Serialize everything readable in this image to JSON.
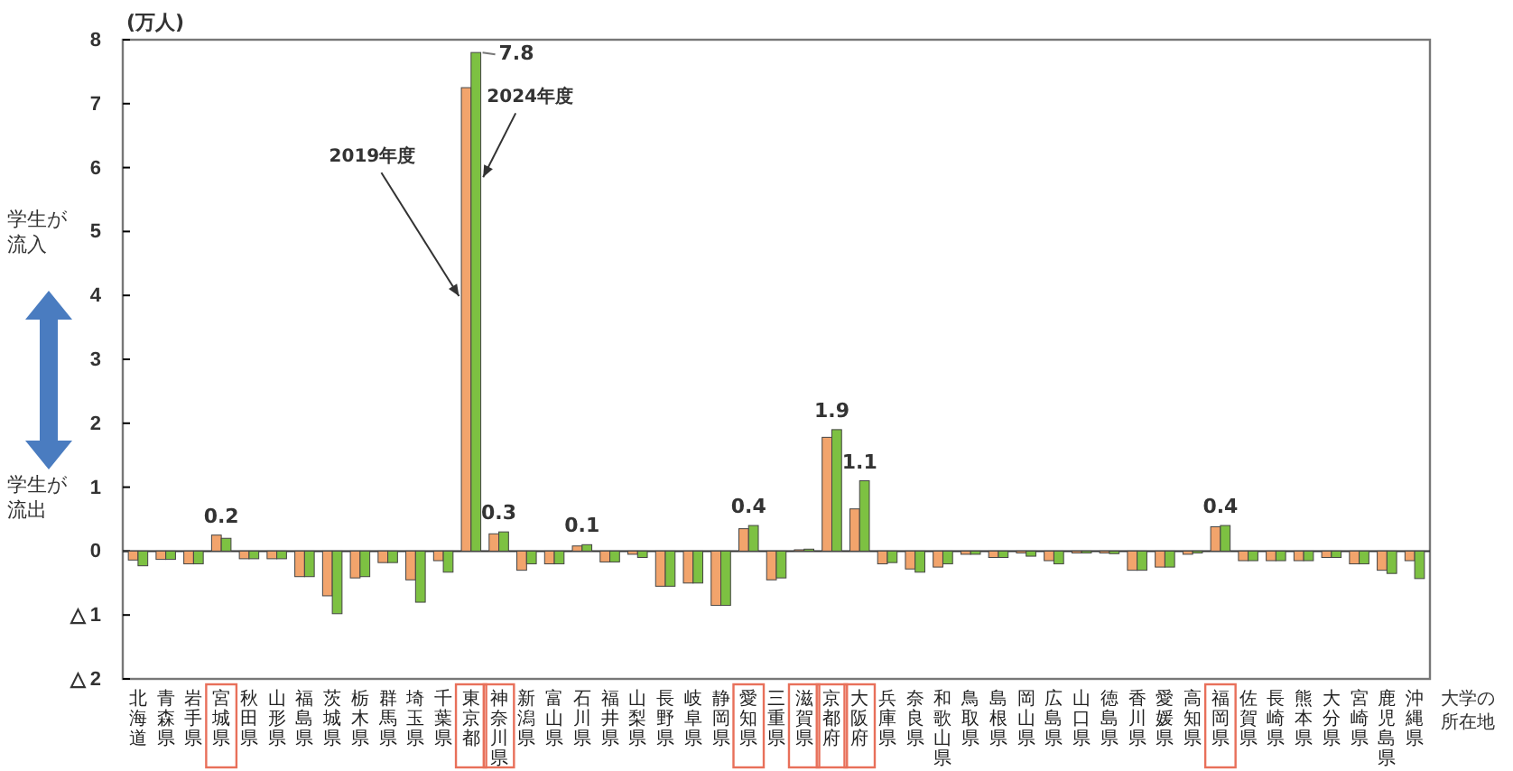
{
  "chart_data": {
    "type": "bar",
    "ylabel": "(万人)",
    "xlabel": "大学の所在地",
    "categories": [
      "北海道",
      "青森県",
      "岩手県",
      "宮城県",
      "秋田県",
      "山形県",
      "福島県",
      "茨城県",
      "栃木県",
      "群馬県",
      "埼玉県",
      "千葉県",
      "東京都",
      "神奈川県",
      "新潟県",
      "富山県",
      "石川県",
      "福井県",
      "山梨県",
      "長野県",
      "岐阜県",
      "静岡県",
      "愛知県",
      "三重県",
      "滋賀県",
      "京都府",
      "大阪府",
      "兵庫県",
      "奈良県",
      "和歌山県",
      "鳥取県",
      "島根県",
      "岡山県",
      "広島県",
      "山口県",
      "徳島県",
      "香川県",
      "愛媛県",
      "高知県",
      "福岡県",
      "佐賀県",
      "長崎県",
      "熊本県",
      "大分県",
      "宮崎県",
      "鹿児島県",
      "沖縄県"
    ],
    "series": [
      {
        "name": "2019年度",
        "color": "#f2a46c",
        "values": [
          -0.14,
          -0.13,
          -0.2,
          0.25,
          -0.12,
          -0.12,
          -0.4,
          -0.7,
          -0.42,
          -0.18,
          -0.45,
          -0.15,
          7.25,
          0.27,
          -0.3,
          -0.2,
          0.08,
          -0.17,
          -0.05,
          -0.55,
          -0.5,
          -0.85,
          0.35,
          -0.45,
          0.02,
          1.78,
          0.66,
          -0.2,
          -0.28,
          -0.25,
          -0.05,
          -0.1,
          -0.03,
          -0.15,
          -0.03,
          -0.03,
          -0.3,
          -0.25,
          -0.05,
          0.38,
          -0.15,
          -0.15,
          -0.15,
          -0.1,
          -0.2,
          -0.3,
          -0.15
        ]
      },
      {
        "name": "2024年度",
        "color": "#7dc142",
        "values": [
          -0.23,
          -0.13,
          -0.2,
          0.2,
          -0.12,
          -0.12,
          -0.4,
          -0.98,
          -0.4,
          -0.18,
          -0.8,
          -0.33,
          7.8,
          0.3,
          -0.2,
          -0.2,
          0.1,
          -0.17,
          -0.1,
          -0.55,
          -0.5,
          -0.85,
          0.4,
          -0.42,
          0.03,
          1.9,
          1.1,
          -0.18,
          -0.33,
          -0.2,
          -0.05,
          -0.1,
          -0.08,
          -0.2,
          -0.03,
          -0.04,
          -0.3,
          -0.25,
          -0.03,
          0.4,
          -0.15,
          -0.15,
          -0.15,
          -0.1,
          -0.2,
          -0.35,
          -0.43
        ],
        "value_labels": [
          null,
          null,
          null,
          "0.2",
          null,
          null,
          null,
          null,
          null,
          null,
          null,
          null,
          "7.8",
          "0.3",
          null,
          null,
          "0.1",
          null,
          null,
          null,
          null,
          null,
          "0.4",
          null,
          null,
          "1.9",
          "1.1",
          null,
          null,
          null,
          null,
          null,
          null,
          null,
          null,
          null,
          null,
          null,
          null,
          "0.4",
          null,
          null,
          null,
          null,
          null,
          null,
          null
        ]
      }
    ],
    "ylim": [
      -2,
      8
    ],
    "yticks": [
      {
        "value": -2,
        "label": "△ 2"
      },
      {
        "value": -1,
        "label": "△ 1"
      },
      0,
      1,
      2,
      3,
      4,
      5,
      6,
      7,
      8
    ],
    "annotations": [
      "学生が流入",
      "学生が流出"
    ]
  }
}
